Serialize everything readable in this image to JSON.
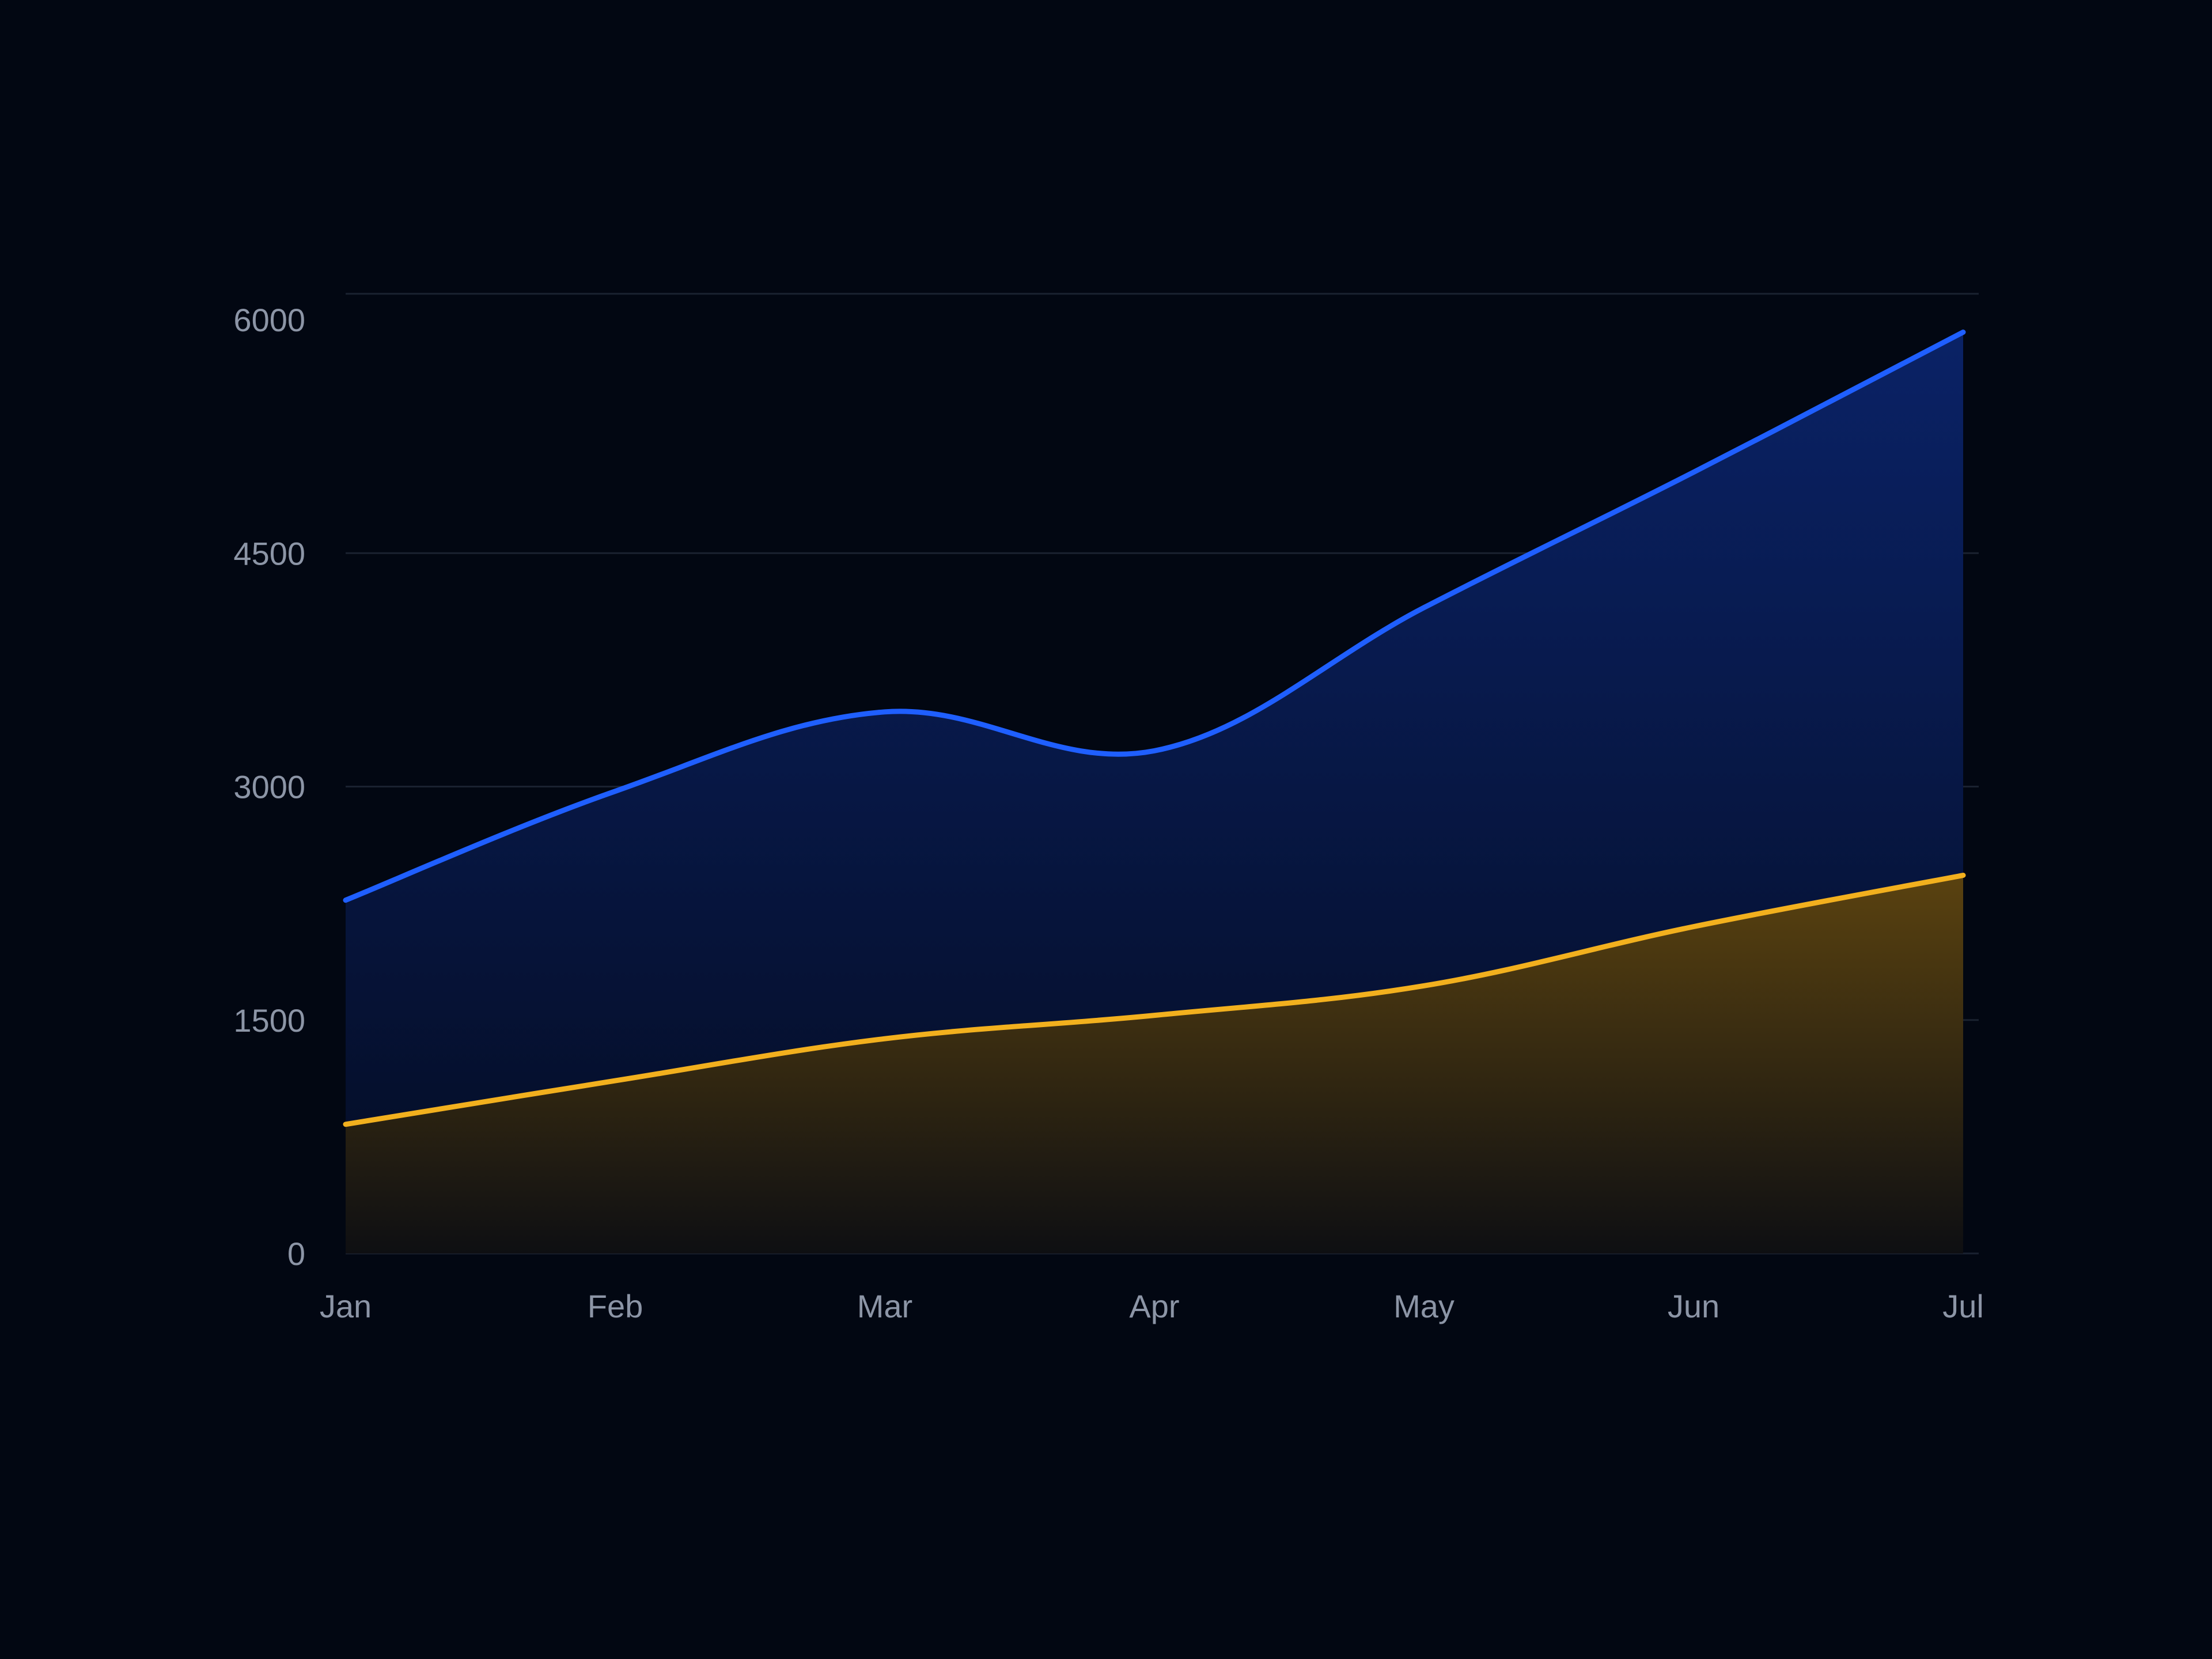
{
  "colors": {
    "background": "#020712",
    "grid": "#1a2230",
    "tick_text": "#8c95a6",
    "series_blue": "#1f5fff",
    "series_yellow": "#f2b01e"
  },
  "chart_data": {
    "type": "area",
    "x": [
      "Jan",
      "Feb",
      "Mar",
      "Apr",
      "May",
      "Jun",
      "Jul"
    ],
    "ylim": [
      0,
      6000
    ],
    "yticks": [
      0,
      1500,
      3000,
      4500,
      6000
    ],
    "title": "",
    "xlabel": "",
    "ylabel": "",
    "grid": true,
    "legend": false,
    "series": [
      {
        "color": "#1f5fff",
        "values": [
          2270,
          2970,
          3480,
          3230,
          4150,
          5020,
          5920
        ]
      },
      {
        "color": "#f2b01e",
        "values": [
          830,
          1110,
          1380,
          1530,
          1720,
          2100,
          2430
        ]
      }
    ]
  }
}
